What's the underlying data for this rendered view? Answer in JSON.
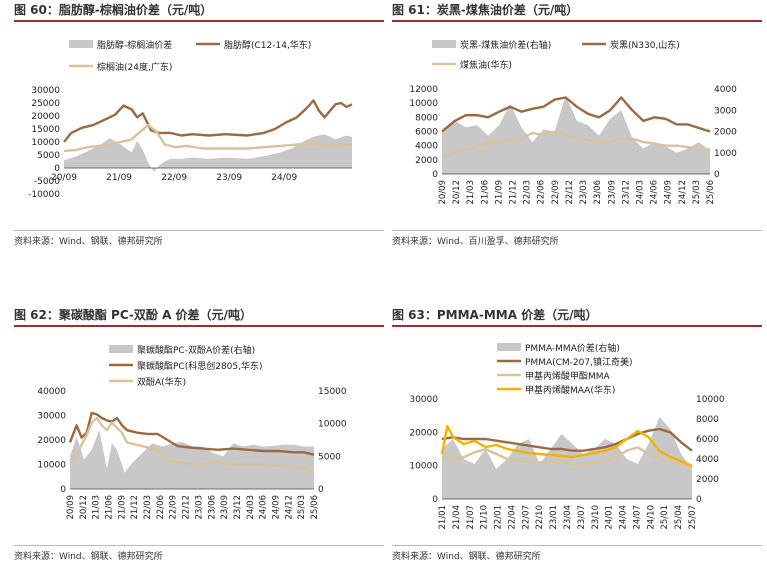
{
  "colors": {
    "brown": "#9b6a42",
    "tan": "#d9c39b",
    "gray": "#c8c8c8",
    "yellow": "#f2b300",
    "accent": "#9b2d2d"
  },
  "panels": [
    {
      "title": "图 60：脂肪醇-棕榈油价差（元/吨）",
      "source": "资料来源：Wind、钢联、德邦研究所"
    },
    {
      "title": "图 61：炭黑-煤焦油价差（元/吨）",
      "source": "资料来源：Wind、百川盈孚、德邦研究所"
    },
    {
      "title": "图 62：聚碳酸酯 PC-双酚 A 价差（元/吨）",
      "source": "资料来源：Wind、钢联、德邦研究所"
    },
    {
      "title": "图 63：PMMA-MMA 价差（元/吨）",
      "source": "资料来源：Wind、钢联、德邦研究所"
    }
  ],
  "chart_data": [
    {
      "type": "line",
      "title": "脂肪醇-棕榈油价差",
      "ylim": [
        -10000,
        30000
      ],
      "y_ticks": [
        "30000",
        "25000",
        "20000",
        "15000",
        "10000",
        "5000",
        "0",
        "-5000",
        "-10000"
      ],
      "x_range": [
        2020.67,
        2025.9
      ],
      "x_ticks": [
        "20/09",
        "21/09",
        "22/09",
        "23/09",
        "24/09"
      ],
      "legend": [
        "脂肪醇-棕榈油价差",
        "脂肪醇(C12-14,华东)",
        "棕榈油(24度,广东)"
      ],
      "series": [
        {
          "name": "脂肪醇-棕榈油价差",
          "kind": "area",
          "axis": "left",
          "x": [
            2020.67,
            2020.9,
            2021.1,
            2021.3,
            2021.5,
            2021.7,
            2021.9,
            2022.0,
            2022.1,
            2022.2,
            2022.3,
            2022.4,
            2022.5,
            2022.6,
            2022.8,
            2023.0,
            2023.3,
            2023.6,
            2024.0,
            2024.3,
            2024.6,
            2024.8,
            2025.0,
            2025.2,
            2025.4,
            2025.6,
            2025.8,
            2025.9
          ],
          "y": [
            3000,
            4500,
            6500,
            8500,
            11500,
            9000,
            6000,
            10500,
            7000,
            2000,
            -1500,
            1000,
            2500,
            3500,
            3500,
            4000,
            3500,
            4000,
            3500,
            4500,
            6000,
            7500,
            10000,
            12000,
            13000,
            11000,
            12500,
            12000
          ]
        },
        {
          "name": "脂肪醇(C12-14,华东)",
          "kind": "line",
          "axis": "left",
          "x": [
            2020.67,
            2020.8,
            2021.0,
            2021.2,
            2021.4,
            2021.6,
            2021.75,
            2021.9,
            2022.0,
            2022.1,
            2022.25,
            2022.4,
            2022.6,
            2022.8,
            2023.0,
            2023.3,
            2023.6,
            2024.0,
            2024.3,
            2024.5,
            2024.7,
            2024.9,
            2025.0,
            2025.1,
            2025.2,
            2025.3,
            2025.4,
            2025.5,
            2025.6,
            2025.7,
            2025.8,
            2025.9
          ],
          "y": [
            10000,
            13500,
            15500,
            16500,
            18500,
            20500,
            24000,
            22500,
            19500,
            21000,
            14500,
            13500,
            13500,
            12500,
            13000,
            12500,
            13000,
            12500,
            13500,
            15000,
            17500,
            19500,
            21500,
            23500,
            26000,
            22000,
            19500,
            22000,
            24500,
            25000,
            23500,
            24500
          ]
        },
        {
          "name": "棕榈油(24度,广东)",
          "kind": "line",
          "axis": "left",
          "x": [
            2020.67,
            2020.9,
            2021.1,
            2021.3,
            2021.5,
            2021.7,
            2021.9,
            2022.0,
            2022.2,
            2022.35,
            2022.5,
            2022.7,
            2022.9,
            2023.2,
            2023.6,
            2024.0,
            2024.3,
            2024.6,
            2024.9,
            2025.2,
            2025.5,
            2025.9
          ],
          "y": [
            6500,
            7000,
            8000,
            8500,
            9000,
            10000,
            11000,
            13000,
            16500,
            14000,
            9000,
            8000,
            8500,
            7500,
            7500,
            7500,
            8000,
            8500,
            9000,
            9500,
            8500,
            9000
          ]
        }
      ]
    },
    {
      "type": "line",
      "title": "炭黑-煤焦油价差",
      "ylim": [
        0,
        12000
      ],
      "y_ticks": [
        "12000",
        "10000",
        "8000",
        "6000",
        "4000",
        "2000",
        "0"
      ],
      "y2lim": [
        0,
        4000
      ],
      "y2_ticks": [
        "4000",
        "3000",
        "2000",
        "1000",
        "0"
      ],
      "x_range": [
        2020.67,
        2025.5
      ],
      "x_ticks": [
        "20/09",
        "20/12",
        "21/03",
        "21/06",
        "21/09",
        "21/12",
        "22/03",
        "22/06",
        "22/09",
        "22/12",
        "23/03",
        "23/06",
        "23/09",
        "23/12",
        "24/03",
        "24/06",
        "24/09",
        "24/12",
        "25/03",
        "25/06"
      ],
      "legend": [
        "炭黑-煤焦油价差(右轴)",
        "炭黑(N330,山东)",
        "煤焦油(华东)"
      ],
      "series": [
        {
          "name": "炭黑-煤焦油价差(右轴)",
          "kind": "area",
          "axis": "right",
          "x": [
            2020.67,
            2020.9,
            2021.1,
            2021.3,
            2021.5,
            2021.7,
            2021.9,
            2022.1,
            2022.3,
            2022.5,
            2022.7,
            2022.9,
            2023.1,
            2023.3,
            2023.5,
            2023.7,
            2023.9,
            2024.1,
            2024.3,
            2024.5,
            2024.7,
            2024.9,
            2025.1,
            2025.3,
            2025.5
          ],
          "y": [
            2000,
            2500,
            2200,
            2300,
            1800,
            2300,
            3300,
            2200,
            1500,
            2100,
            2000,
            3700,
            2500,
            2300,
            1800,
            2600,
            3000,
            1700,
            1200,
            1500,
            1300,
            1000,
            1200,
            1500,
            1100
          ]
        },
        {
          "name": "炭黑(N330,山东)",
          "kind": "line",
          "axis": "left",
          "x": [
            2020.67,
            2020.9,
            2021.1,
            2021.3,
            2021.5,
            2021.7,
            2021.9,
            2022.1,
            2022.3,
            2022.5,
            2022.7,
            2022.9,
            2023.1,
            2023.3,
            2023.5,
            2023.7,
            2023.9,
            2024.1,
            2024.3,
            2024.5,
            2024.7,
            2024.9,
            2025.1,
            2025.3,
            2025.5
          ],
          "y": [
            6000,
            7500,
            8300,
            8300,
            8000,
            8800,
            9500,
            8800,
            9200,
            9500,
            10500,
            10800,
            9500,
            8500,
            8000,
            9000,
            10800,
            9000,
            7500,
            8000,
            7800,
            7000,
            7000,
            6500,
            6000
          ]
        },
        {
          "name": "煤焦油(华东)",
          "kind": "line",
          "axis": "left",
          "x": [
            2020.67,
            2020.9,
            2021.1,
            2021.3,
            2021.5,
            2021.7,
            2021.9,
            2022.1,
            2022.3,
            2022.5,
            2022.7,
            2022.9,
            2023.1,
            2023.3,
            2023.5,
            2023.7,
            2023.9,
            2024.1,
            2024.3,
            2024.5,
            2024.7,
            2024.9,
            2025.1,
            2025.3,
            2025.5
          ],
          "y": [
            2500,
            3000,
            3500,
            3800,
            4500,
            4500,
            4800,
            5000,
            5800,
            5500,
            6000,
            5500,
            5000,
            4800,
            4500,
            4500,
            5000,
            5000,
            4500,
            4300,
            4000,
            4000,
            3800,
            3500,
            3500
          ]
        }
      ]
    },
    {
      "type": "line",
      "title": "聚碳酸酯PC-双酚A价差",
      "ylim": [
        0,
        40000
      ],
      "y_ticks": [
        "40000",
        "30000",
        "20000",
        "10000",
        "0"
      ],
      "y2lim": [
        0,
        15000
      ],
      "y2_ticks": [
        "15000",
        "10000",
        "5000",
        "0"
      ],
      "x_range": [
        2020.67,
        2025.5
      ],
      "x_ticks": [
        "20/09",
        "20/12",
        "21/03",
        "21/06",
        "21/09",
        "21/12",
        "22/03",
        "22/06",
        "22/09",
        "22/12",
        "23/03",
        "23/06",
        "23/09",
        "23/12",
        "24/03",
        "24/06",
        "24/09",
        "24/12",
        "25/03",
        "25/06"
      ],
      "legend": [
        "聚碳酸酯PC-双酚A价差(右轴)",
        "聚碳酸酯PC(科思创2805,华东)",
        "双酚A(华东)"
      ],
      "series": [
        {
          "name": "聚碳酸酯PC-双酚A价差(右轴)",
          "kind": "area",
          "axis": "right",
          "x": [
            2020.67,
            2020.8,
            2020.95,
            2021.1,
            2021.25,
            2021.4,
            2021.5,
            2021.6,
            2021.75,
            2021.9,
            2022.1,
            2022.3,
            2022.5,
            2022.7,
            2022.9,
            2023.1,
            2023.3,
            2023.5,
            2023.7,
            2023.9,
            2024.1,
            2024.3,
            2024.5,
            2024.7,
            2024.9,
            2025.1,
            2025.3,
            2025.5
          ],
          "y": [
            5000,
            8000,
            4500,
            6000,
            9000,
            3000,
            7000,
            6000,
            2500,
            4000,
            5500,
            7000,
            6500,
            7000,
            7200,
            6500,
            6500,
            5500,
            5000,
            7000,
            6500,
            6800,
            6500,
            6600,
            6800,
            6800,
            6500,
            6500
          ]
        },
        {
          "name": "聚碳酸酯PC(科思创2805,华东)",
          "kind": "line",
          "axis": "left",
          "x": [
            2020.67,
            2020.8,
            2020.9,
            2021.0,
            2021.1,
            2021.2,
            2021.3,
            2021.4,
            2021.5,
            2021.6,
            2021.7,
            2021.8,
            2022.0,
            2022.2,
            2022.4,
            2022.6,
            2022.8,
            2023.0,
            2023.3,
            2023.6,
            2023.9,
            2024.2,
            2024.5,
            2024.8,
            2025.1,
            2025.3,
            2025.5
          ],
          "y": [
            19000,
            26000,
            21000,
            23000,
            31000,
            30500,
            29000,
            28000,
            27500,
            29000,
            26000,
            24000,
            23000,
            22500,
            22500,
            20000,
            17500,
            17000,
            16500,
            16000,
            16500,
            16000,
            15500,
            15500,
            15000,
            15000,
            14000
          ]
        },
        {
          "name": "双酚A(华东)",
          "kind": "line",
          "axis": "left",
          "x": [
            2020.67,
            2020.8,
            2020.9,
            2021.0,
            2021.1,
            2021.2,
            2021.3,
            2021.4,
            2021.5,
            2021.6,
            2021.7,
            2021.8,
            2022.0,
            2022.2,
            2022.4,
            2022.6,
            2022.8,
            2023.0,
            2023.3,
            2023.6,
            2023.9,
            2024.2,
            2024.5,
            2024.8,
            2025.1,
            2025.3,
            2025.5
          ],
          "y": [
            11500,
            14000,
            18000,
            22000,
            27000,
            29000,
            26000,
            24000,
            27000,
            25000,
            23000,
            19000,
            18000,
            17000,
            16000,
            12000,
            11000,
            10500,
            10000,
            11000,
            10000,
            10000,
            10000,
            9500,
            9000,
            8500,
            7500
          ]
        }
      ]
    },
    {
      "type": "line",
      "title": "PMMA-MMA价差",
      "ylim": [
        0,
        30000
      ],
      "y_ticks": [
        "30000",
        "20000",
        "10000",
        "0"
      ],
      "y2lim": [
        0,
        10000
      ],
      "y2_ticks": [
        "10000",
        "8000",
        "6000",
        "4000",
        "2000",
        "0"
      ],
      "x_range": [
        2021.0,
        2025.6
      ],
      "x_ticks": [
        "21/01",
        "21/04",
        "21/07",
        "21/10",
        "22/01",
        "22/04",
        "22/07",
        "22/10",
        "23/01",
        "23/04",
        "23/07",
        "23/10",
        "24/01",
        "24/04",
        "24/07",
        "24/10",
        "25/01",
        "25/04",
        "25/07"
      ],
      "legend": [
        "PMMA-MMA价差(右轴)",
        "PMMA(CM-207,镇江奇美)",
        "甲基丙烯酸甲酯MMA",
        "甲基丙烯酸MAA(华东)"
      ],
      "series": [
        {
          "name": "PMMA-MMA价差(右轴)",
          "kind": "area",
          "axis": "right",
          "x": [
            2021.0,
            2021.2,
            2021.4,
            2021.6,
            2021.8,
            2022.0,
            2022.2,
            2022.4,
            2022.6,
            2022.8,
            2023.0,
            2023.2,
            2023.4,
            2023.6,
            2023.8,
            2024.0,
            2024.2,
            2024.4,
            2024.6,
            2024.8,
            2025.0,
            2025.2,
            2025.4,
            2025.6
          ],
          "y": [
            5000,
            6000,
            4000,
            3500,
            5000,
            3000,
            4000,
            5500,
            6000,
            3500,
            5000,
            6500,
            5500,
            4500,
            5000,
            6000,
            5500,
            4000,
            3500,
            5500,
            8200,
            7000,
            4500,
            3000
          ]
        },
        {
          "name": "PMMA(CM-207,镇江奇美)",
          "kind": "line",
          "axis": "left",
          "x": [
            2021.0,
            2021.2,
            2021.4,
            2021.6,
            2021.8,
            2022.0,
            2022.2,
            2022.4,
            2022.6,
            2022.8,
            2023.0,
            2023.2,
            2023.4,
            2023.6,
            2023.8,
            2024.0,
            2024.2,
            2024.4,
            2024.6,
            2024.8,
            2025.0,
            2025.2,
            2025.4,
            2025.6
          ],
          "y": [
            18000,
            18500,
            18000,
            18000,
            18000,
            17500,
            17000,
            16500,
            16000,
            15500,
            15000,
            15000,
            14500,
            14500,
            15000,
            15500,
            16500,
            18000,
            19500,
            20500,
            21000,
            20000,
            17000,
            14500
          ]
        },
        {
          "name": "甲基丙烯酸甲酯MMA",
          "kind": "line",
          "axis": "left",
          "x": [
            2021.0,
            2021.2,
            2021.4,
            2021.6,
            2021.8,
            2022.0,
            2022.2,
            2022.4,
            2022.6,
            2022.8,
            2023.0,
            2023.2,
            2023.4,
            2023.6,
            2023.8,
            2024.0,
            2024.2,
            2024.4,
            2024.6,
            2024.8,
            2025.0,
            2025.2,
            2025.4,
            2025.6
          ],
          "y": [
            13000,
            12000,
            12500,
            14000,
            15000,
            13500,
            12000,
            11500,
            11000,
            11000,
            11000,
            11500,
            10500,
            10500,
            11000,
            11500,
            12500,
            14500,
            15500,
            13500,
            12000,
            11000,
            10500,
            9500
          ]
        },
        {
          "name": "甲基丙烯酸MAA(华东)",
          "kind": "line",
          "axis": "right",
          "x": [
            2021.0,
            2021.1,
            2021.2,
            2021.4,
            2021.6,
            2021.8,
            2022.0,
            2022.2,
            2022.4,
            2022.6,
            2022.8,
            2023.0,
            2023.2,
            2023.4,
            2023.6,
            2023.8,
            2024.0,
            2024.2,
            2024.4,
            2024.6,
            2024.8,
            2025.0,
            2025.2,
            2025.4,
            2025.6
          ],
          "y": [
            4500,
            7300,
            6200,
            5500,
            5800,
            5200,
            5400,
            5000,
            4800,
            4600,
            4500,
            4400,
            4300,
            4200,
            4400,
            4600,
            4800,
            5200,
            6000,
            6800,
            6200,
            4800,
            4200,
            3800,
            3300
          ]
        }
      ]
    }
  ]
}
